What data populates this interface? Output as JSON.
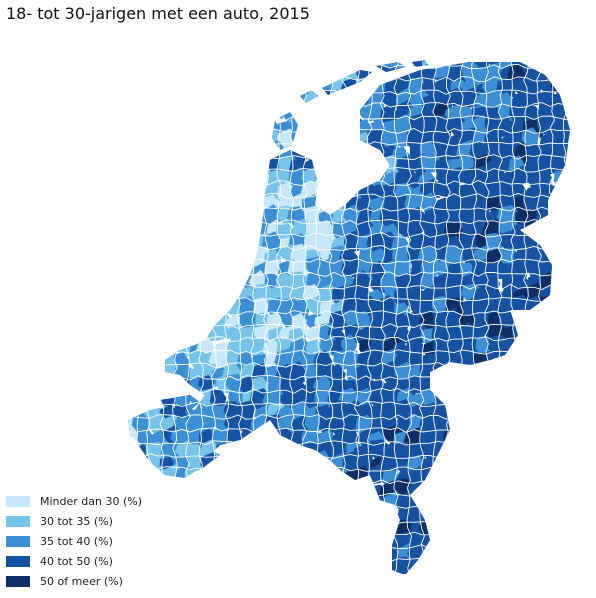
{
  "title": "18- tot 30-jarigen met een auto, 2015",
  "legend": {
    "items": [
      {
        "label": "Minder dan 30 (%)",
        "color": "#c6e6fa"
      },
      {
        "label": "30 tot 35 (%)",
        "color": "#76c4ea"
      },
      {
        "label": "35 tot 40 (%)",
        "color": "#3a8fd6"
      },
      {
        "label": "40 tot 50 (%)",
        "color": "#1552a3"
      },
      {
        "label": "50 of meer (%)",
        "color": "#0e2f66"
      }
    ]
  }
}
